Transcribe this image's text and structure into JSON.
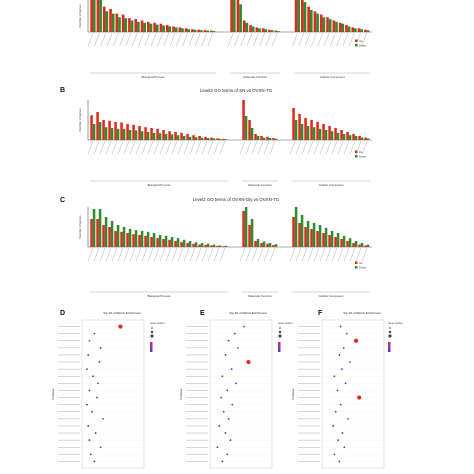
{
  "figure": {
    "panel_letters": [
      "B",
      "C",
      "D",
      "E",
      "F"
    ]
  },
  "colors": {
    "up": "#e0281c",
    "down": "#2e8b2e",
    "axis": "#555555",
    "grid": "#cccccc",
    "tick": "#888888"
  },
  "chart_data": [
    {
      "id": "A",
      "type": "bar",
      "title": "",
      "ylabel": "Number of genes",
      "groups": [
        "Biological Process",
        "Molecular Function",
        "Cellular Component"
      ],
      "legend": [
        "Up",
        "Down"
      ],
      "series": [
        {
          "name": "Up",
          "values": [
            [
              100,
              90,
              55,
              50,
              40,
              38,
              30,
              28,
              25,
              22,
              20,
              18,
              15,
              12,
              10,
              8,
              6,
              5,
              4,
              3
            ],
            [
              100,
              70,
              25,
              15,
              10,
              8,
              5,
              3
            ],
            [
              95,
              75,
              55,
              45,
              38,
              32,
              25,
              20,
              15,
              10,
              8,
              5
            ]
          ]
        },
        {
          "name": "Down",
          "values": [
            [
              85,
              70,
              45,
              40,
              32,
              30,
              25,
              22,
              20,
              18,
              16,
              14,
              12,
              10,
              8,
              6,
              5,
              4,
              3,
              2
            ],
            [
              80,
              60,
              20,
              12,
              8,
              6,
              4,
              2
            ],
            [
              85,
              65,
              48,
              40,
              32,
              28,
              22,
              18,
              12,
              8,
              6,
              4
            ]
          ]
        }
      ]
    },
    {
      "id": "B",
      "type": "bar",
      "title": "Level2 GO terms of SN vs OVXN-TG",
      "ylabel": "Number of genes",
      "groups": [
        "Biological Process",
        "Molecular Function",
        "Cellular Component"
      ],
      "legend": [
        "Up",
        "Down"
      ],
      "series": [
        {
          "name": "Up",
          "values": [
            [
              62,
              70,
              50,
              48,
              45,
              44,
              40,
              38,
              35,
              32,
              30,
              28,
              25,
              22,
              20,
              18,
              15,
              12,
              10,
              8,
              6,
              4,
              3
            ],
            [
              100,
              50,
              15,
              10,
              8,
              5
            ],
            [
              80,
              65,
              55,
              50,
              45,
              40,
              35,
              30,
              25,
              20,
              15,
              10,
              6
            ]
          ]
        },
        {
          "name": "Down",
          "values": [
            [
              40,
              45,
              32,
              30,
              28,
              28,
              25,
              24,
              22,
              20,
              18,
              17,
              15,
              14,
              12,
              10,
              8,
              7,
              6,
              5,
              4,
              3,
              2
            ],
            [
              60,
              30,
              10,
              6,
              5,
              3
            ],
            [
              50,
              40,
              35,
              32,
              28,
              25,
              22,
              18,
              15,
              12,
              10,
              6,
              4
            ]
          ]
        }
      ]
    },
    {
      "id": "C",
      "type": "bar",
      "title": "Level2 GO terms of OVXN-Gly vs OVXN-TG",
      "ylabel": "Number of genes",
      "groups": [
        "Biological Process",
        "Molecular Function",
        "Cellular Component"
      ],
      "legend": [
        "Up",
        "Down"
      ],
      "series": [
        {
          "name": "Up",
          "values": [
            [
              70,
              70,
              55,
              50,
              40,
              38,
              35,
              32,
              30,
              28,
              25,
              22,
              20,
              18,
              15,
              12,
              10,
              8,
              6,
              5,
              4,
              3,
              2
            ],
            [
              90,
              55,
              15,
              10,
              8,
              5
            ],
            [
              75,
              60,
              50,
              45,
              40,
              35,
              30,
              25,
              20,
              15,
              10,
              6,
              4
            ]
          ]
        },
        {
          "name": "Down",
          "values": [
            [
              95,
              95,
              75,
              65,
              55,
              50,
              45,
              42,
              40,
              38,
              35,
              30,
              28,
              25,
              22,
              18,
              15,
              12,
              10,
              8,
              6,
              4,
              3
            ],
            [
              100,
              70,
              20,
              14,
              10,
              7
            ],
            [
              100,
              80,
              65,
              60,
              55,
              48,
              40,
              35,
              28,
              22,
              15,
              10,
              6
            ]
          ]
        }
      ]
    },
    {
      "id": "D",
      "type": "scatter",
      "title": "Top 20 of KEGG Enrichment",
      "ylabel": "Pathway",
      "legend_title": "Gene number",
      "points": [
        {
          "x": 0.62,
          "r": 2,
          "c": 0.9
        },
        {
          "x": 0.2,
          "r": 1,
          "c": 0.3
        },
        {
          "x": 0.12,
          "r": 1,
          "c": 0.4
        },
        {
          "x": 0.3,
          "r": 1,
          "c": 0.3
        },
        {
          "x": 0.1,
          "r": 1,
          "c": 0.2
        },
        {
          "x": 0.28,
          "r": 1,
          "c": 0.3
        },
        {
          "x": 0.08,
          "r": 1,
          "c": 0.2
        },
        {
          "x": 0.18,
          "r": 1,
          "c": 0.3
        },
        {
          "x": 0.26,
          "r": 1,
          "c": 0.3
        },
        {
          "x": 0.12,
          "r": 1,
          "c": 0.2
        },
        {
          "x": 0.24,
          "r": 1,
          "c": 0.3
        },
        {
          "x": 0.08,
          "r": 1,
          "c": 0.2
        },
        {
          "x": 0.16,
          "r": 1,
          "c": 0.3
        },
        {
          "x": 0.34,
          "r": 1,
          "c": 0.4
        },
        {
          "x": 0.1,
          "r": 1,
          "c": 0.2
        },
        {
          "x": 0.22,
          "r": 1,
          "c": 0.3
        },
        {
          "x": 0.12,
          "r": 1,
          "c": 0.2
        },
        {
          "x": 0.3,
          "r": 1,
          "c": 0.4
        },
        {
          "x": 0.14,
          "r": 1,
          "c": 0.2
        },
        {
          "x": 0.2,
          "r": 1,
          "c": 0.3
        }
      ]
    },
    {
      "id": "E",
      "type": "scatter",
      "title": "Top 20 of KEGG Enrichment",
      "ylabel": "Pathway",
      "legend_title": "Gene number",
      "points": [
        {
          "x": 0.55,
          "r": 1,
          "c": 0.4
        },
        {
          "x": 0.4,
          "r": 1,
          "c": 0.3
        },
        {
          "x": 0.3,
          "r": 1,
          "c": 0.3
        },
        {
          "x": 0.45,
          "r": 1,
          "c": 0.4
        },
        {
          "x": 0.25,
          "r": 1,
          "c": 0.2
        },
        {
          "x": 0.62,
          "r": 2,
          "c": 0.9
        },
        {
          "x": 0.35,
          "r": 1,
          "c": 0.3
        },
        {
          "x": 0.2,
          "r": 1,
          "c": 0.2
        },
        {
          "x": 0.42,
          "r": 1,
          "c": 0.3
        },
        {
          "x": 0.28,
          "r": 1,
          "c": 0.2
        },
        {
          "x": 0.18,
          "r": 1,
          "c": 0.2
        },
        {
          "x": 0.36,
          "r": 1,
          "c": 0.3
        },
        {
          "x": 0.22,
          "r": 1,
          "c": 0.2
        },
        {
          "x": 0.3,
          "r": 1,
          "c": 0.3
        },
        {
          "x": 0.15,
          "r": 1,
          "c": 0.2
        },
        {
          "x": 0.25,
          "r": 1,
          "c": 0.2
        },
        {
          "x": 0.33,
          "r": 1,
          "c": 0.3
        },
        {
          "x": 0.12,
          "r": 1,
          "c": 0.2
        },
        {
          "x": 0.28,
          "r": 1,
          "c": 0.3
        },
        {
          "x": 0.2,
          "r": 1,
          "c": 0.2
        }
      ]
    },
    {
      "id": "F",
      "type": "scatter",
      "title": "Top 20 of KEGG Enrichment",
      "ylabel": "Pathway",
      "legend_title": "Gene number",
      "points": [
        {
          "x": 0.3,
          "r": 1,
          "c": 0.3
        },
        {
          "x": 0.4,
          "r": 1,
          "c": 0.4
        },
        {
          "x": 0.55,
          "r": 2,
          "c": 0.8
        },
        {
          "x": 0.35,
          "r": 1,
          "c": 0.3
        },
        {
          "x": 0.28,
          "r": 1,
          "c": 0.3
        },
        {
          "x": 0.45,
          "r": 1,
          "c": 0.4
        },
        {
          "x": 0.32,
          "r": 1,
          "c": 0.3
        },
        {
          "x": 0.2,
          "r": 1,
          "c": 0.2
        },
        {
          "x": 0.38,
          "r": 1,
          "c": 0.3
        },
        {
          "x": 0.25,
          "r": 1,
          "c": 0.2
        },
        {
          "x": 0.6,
          "r": 2,
          "c": 0.9
        },
        {
          "x": 0.3,
          "r": 1,
          "c": 0.3
        },
        {
          "x": 0.22,
          "r": 1,
          "c": 0.2
        },
        {
          "x": 0.42,
          "r": 1,
          "c": 0.4
        },
        {
          "x": 0.18,
          "r": 1,
          "c": 0.2
        },
        {
          "x": 0.33,
          "r": 1,
          "c": 0.3
        },
        {
          "x": 0.26,
          "r": 1,
          "c": 0.2
        },
        {
          "x": 0.36,
          "r": 1,
          "c": 0.3
        },
        {
          "x": 0.2,
          "r": 1,
          "c": 0.2
        },
        {
          "x": 0.28,
          "r": 1,
          "c": 0.3
        }
      ]
    }
  ]
}
